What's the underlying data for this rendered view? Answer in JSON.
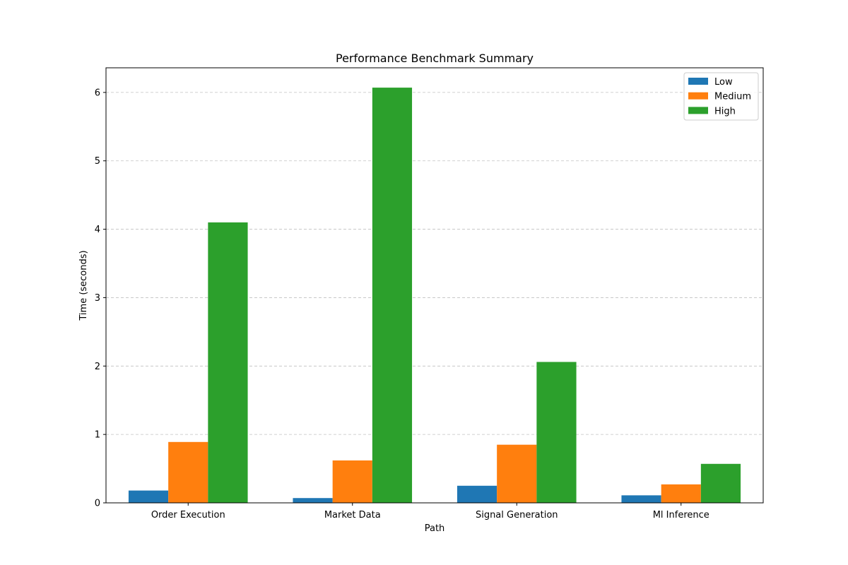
{
  "chart_data": {
    "type": "bar",
    "title": "Performance Benchmark Summary",
    "xlabel": "Path",
    "ylabel": "Time (seconds)",
    "categories": [
      "Order Execution",
      "Market Data",
      "Signal Generation",
      "Ml Inference"
    ],
    "series": [
      {
        "name": "Low",
        "color": "#1f77b4",
        "values": [
          0.18,
          0.07,
          0.25,
          0.11
        ]
      },
      {
        "name": "Medium",
        "color": "#ff7f0e",
        "values": [
          0.89,
          0.62,
          0.85,
          0.27
        ]
      },
      {
        "name": "High",
        "color": "#2ca02c",
        "values": [
          4.1,
          6.07,
          2.06,
          0.57
        ]
      }
    ],
    "ylim": [
      0,
      6.36
    ],
    "yticks": [
      "0",
      "1",
      "2",
      "3",
      "4",
      "5",
      "6"
    ],
    "grid": "y-dashed",
    "legend_position": "top-right"
  }
}
